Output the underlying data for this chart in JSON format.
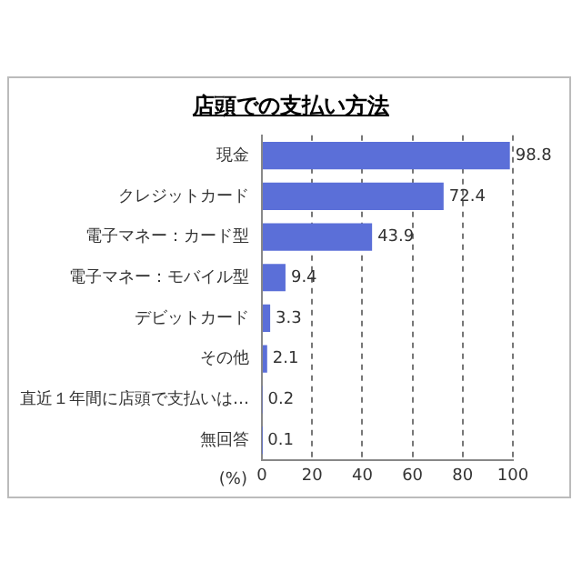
{
  "chart_data": {
    "type": "bar",
    "orientation": "horizontal",
    "title": "店頭での支払い方法",
    "xlabel": "(%)",
    "categories": [
      "現金",
      "クレジットカード",
      "電子マネー：カード型",
      "電子マネー：モバイル型",
      "デビットカード",
      "その他",
      "直近１年間に店頭で支払いは…",
      "無回答"
    ],
    "values": [
      98.8,
      72.4,
      43.9,
      9.4,
      3.3,
      2.1,
      0.2,
      0.1
    ],
    "color": "#5b6fd8",
    "xlim": [
      0,
      100
    ],
    "xticks": [
      0,
      20,
      40,
      60,
      80,
      100
    ],
    "grid": "x",
    "data_labels": true,
    "legend": false
  }
}
